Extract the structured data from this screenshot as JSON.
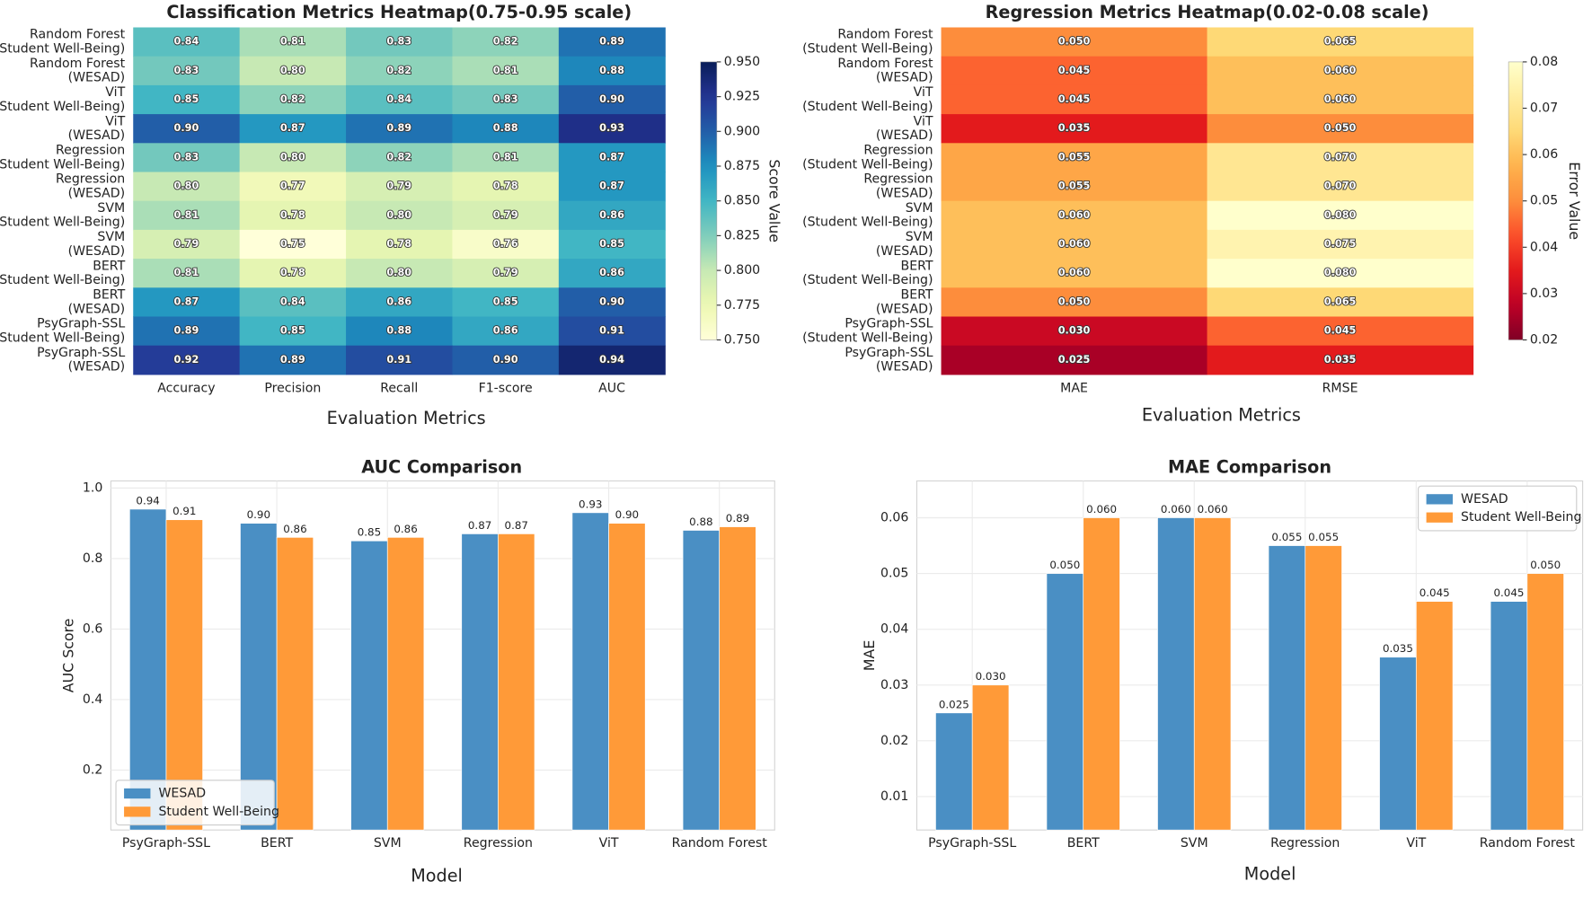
{
  "chart_data": [
    {
      "type": "heatmap",
      "title": "Classification Metrics Heatmap(0.75-0.95 scale)",
      "rows": [
        [
          "Random Forest",
          "(Student Well-Being)"
        ],
        [
          "Random Forest",
          "(WESAD)"
        ],
        [
          "ViT",
          "(Student Well-Being)"
        ],
        [
          "ViT",
          "(WESAD)"
        ],
        [
          "Regression",
          "(Student Well-Being)"
        ],
        [
          "Regression",
          "(WESAD)"
        ],
        [
          "SVM",
          "(Student Well-Being)"
        ],
        [
          "SVM",
          "(WESAD)"
        ],
        [
          "BERT",
          "(Student Well-Being)"
        ],
        [
          "BERT",
          "(WESAD)"
        ],
        [
          "PsyGraph-SSL",
          "(Student Well-Being)"
        ],
        [
          "PsyGraph-SSL",
          "(WESAD)"
        ]
      ],
      "categories": [
        "Accuracy",
        "Precision",
        "Recall",
        "F1-score",
        "AUC"
      ],
      "values": [
        [
          0.84,
          0.81,
          0.83,
          0.82,
          0.89
        ],
        [
          0.83,
          0.8,
          0.82,
          0.81,
          0.88
        ],
        [
          0.85,
          0.82,
          0.84,
          0.83,
          0.9
        ],
        [
          0.9,
          0.87,
          0.89,
          0.88,
          0.93
        ],
        [
          0.83,
          0.8,
          0.82,
          0.81,
          0.87
        ],
        [
          0.8,
          0.77,
          0.79,
          0.78,
          0.87
        ],
        [
          0.81,
          0.78,
          0.8,
          0.79,
          0.86
        ],
        [
          0.79,
          0.75,
          0.78,
          0.76,
          0.85
        ],
        [
          0.81,
          0.78,
          0.8,
          0.79,
          0.86
        ],
        [
          0.87,
          0.84,
          0.86,
          0.85,
          0.9
        ],
        [
          0.89,
          0.85,
          0.88,
          0.86,
          0.91
        ],
        [
          0.92,
          0.89,
          0.91,
          0.9,
          0.94
        ]
      ],
      "value_labels": [
        [
          "0.84",
          "0.81",
          "0.83",
          "0.82",
          "0.89"
        ],
        [
          "0.83",
          "0.80",
          "0.82",
          "0.81",
          "0.88"
        ],
        [
          "0.85",
          "0.82",
          "0.84",
          "0.83",
          "0.90"
        ],
        [
          "0.90",
          "0.87",
          "0.89",
          "0.88",
          "0.93"
        ],
        [
          "0.83",
          "0.80",
          "0.82",
          "0.81",
          "0.87"
        ],
        [
          "0.80",
          "0.77",
          "0.79",
          "0.78",
          "0.87"
        ],
        [
          "0.81",
          "0.78",
          "0.80",
          "0.79",
          "0.86"
        ],
        [
          "0.79",
          "0.75",
          "0.78",
          "0.76",
          "0.85"
        ],
        [
          "0.81",
          "0.78",
          "0.80",
          "0.79",
          "0.86"
        ],
        [
          "0.87",
          "0.84",
          "0.86",
          "0.85",
          "0.90"
        ],
        [
          "0.89",
          "0.85",
          "0.88",
          "0.86",
          "0.91"
        ],
        [
          "0.92",
          "0.89",
          "0.91",
          "0.90",
          "0.94"
        ]
      ],
      "x_label": "Evaluation Metrics",
      "colormap": "YlGnBu",
      "clim": [
        0.75,
        0.95
      ],
      "cticks": [
        {
          "value": 0.75,
          "label": "0.750"
        },
        {
          "value": 0.775,
          "label": "0.775"
        },
        {
          "value": 0.8,
          "label": "0.800"
        },
        {
          "value": 0.825,
          "label": "0.825"
        },
        {
          "value": 0.85,
          "label": "0.850"
        },
        {
          "value": 0.875,
          "label": "0.875"
        },
        {
          "value": 0.9,
          "label": "0.900"
        },
        {
          "value": 0.925,
          "label": "0.925"
        },
        {
          "value": 0.95,
          "label": "0.950"
        }
      ],
      "colorbar_label": "Score Value"
    },
    {
      "type": "heatmap",
      "title": "Regression Metrics Heatmap(0.02-0.08 scale)",
      "rows": [
        [
          "Random Forest",
          "(Student Well-Being)"
        ],
        [
          "Random Forest",
          "(WESAD)"
        ],
        [
          "ViT",
          "(Student Well-Being)"
        ],
        [
          "ViT",
          "(WESAD)"
        ],
        [
          "Regression",
          "(Student Well-Being)"
        ],
        [
          "Regression",
          "(WESAD)"
        ],
        [
          "SVM",
          "(Student Well-Being)"
        ],
        [
          "SVM",
          "(WESAD)"
        ],
        [
          "BERT",
          "(Student Well-Being)"
        ],
        [
          "BERT",
          "(WESAD)"
        ],
        [
          "PsyGraph-SSL",
          "(Student Well-Being)"
        ],
        [
          "PsyGraph-SSL",
          "(WESAD)"
        ]
      ],
      "categories": [
        "MAE",
        "RMSE"
      ],
      "values": [
        [
          0.05,
          0.065
        ],
        [
          0.045,
          0.06
        ],
        [
          0.045,
          0.06
        ],
        [
          0.035,
          0.05
        ],
        [
          0.055,
          0.07
        ],
        [
          0.055,
          0.07
        ],
        [
          0.06,
          0.08
        ],
        [
          0.06,
          0.075
        ],
        [
          0.06,
          0.08
        ],
        [
          0.05,
          0.065
        ],
        [
          0.03,
          0.045
        ],
        [
          0.025,
          0.035
        ]
      ],
      "value_labels": [
        [
          "0.050",
          "0.065"
        ],
        [
          "0.045",
          "0.060"
        ],
        [
          "0.045",
          "0.060"
        ],
        [
          "0.035",
          "0.050"
        ],
        [
          "0.055",
          "0.070"
        ],
        [
          "0.055",
          "0.070"
        ],
        [
          "0.060",
          "0.080"
        ],
        [
          "0.060",
          "0.075"
        ],
        [
          "0.060",
          "0.080"
        ],
        [
          "0.050",
          "0.065"
        ],
        [
          "0.030",
          "0.045"
        ],
        [
          "0.025",
          "0.035"
        ]
      ],
      "x_label": "Evaluation Metrics",
      "colormap": "YlOrRd_r",
      "clim": [
        0.02,
        0.08
      ],
      "cticks": [
        0.02,
        0.03,
        0.04,
        0.05,
        0.06,
        0.07,
        0.08
      ],
      "colorbar_label": "Error Value"
    },
    {
      "type": "bar",
      "title": "AUC Comparison",
      "categories": [
        "PsyGraph-SSL",
        "BERT",
        "SVM",
        "Regression",
        "ViT",
        "Random Forest"
      ],
      "series": [
        {
          "name": "WESAD",
          "color": "#4a8fc4",
          "values": [
            0.94,
            0.9,
            0.85,
            0.87,
            0.93,
            0.88
          ],
          "value_labels": [
            "0.94",
            "0.90",
            "0.85",
            "0.87",
            "0.93",
            "0.88"
          ]
        },
        {
          "name": "Student Well-Being",
          "color": "#ff9a38",
          "values": [
            0.91,
            0.86,
            0.86,
            0.87,
            0.9,
            0.89
          ],
          "value_labels": [
            "0.91",
            "0.86",
            "0.86",
            "0.87",
            "0.90",
            "0.89"
          ]
        }
      ],
      "x_label": "Model",
      "y_label": "AUC Score",
      "ylim": [
        0.03,
        1.02
      ],
      "yticks": [
        0.2,
        0.4,
        0.6,
        0.8,
        {
          "value": 1,
          "label": "1.0"
        }
      ],
      "grid": true,
      "legend": "lower left"
    },
    {
      "type": "bar",
      "title": "MAE Comparison",
      "categories": [
        "PsyGraph-SSL",
        "BERT",
        "SVM",
        "Regression",
        "ViT",
        "Random Forest"
      ],
      "series": [
        {
          "name": "WESAD",
          "color": "#4a8fc4",
          "values": [
            0.025,
            0.05,
            0.06,
            0.055,
            0.035,
            0.045
          ],
          "value_labels": [
            "0.025",
            "0.050",
            "0.060",
            "0.055",
            "0.035",
            "0.045"
          ]
        },
        {
          "name": "Student Well-Being",
          "color": "#ff9a38",
          "values": [
            0.03,
            0.06,
            0.06,
            0.055,
            0.045,
            0.05
          ],
          "value_labels": [
            "0.030",
            "0.060",
            "0.060",
            "0.055",
            "0.045",
            "0.050"
          ]
        }
      ],
      "x_label": "Model",
      "y_label": "MAE",
      "ylim": [
        0.004,
        0.0666
      ],
      "yticks": [
        0.01,
        0.02,
        0.03,
        0.04,
        0.05,
        0.06
      ],
      "grid": true,
      "legend": "upper right"
    }
  ]
}
